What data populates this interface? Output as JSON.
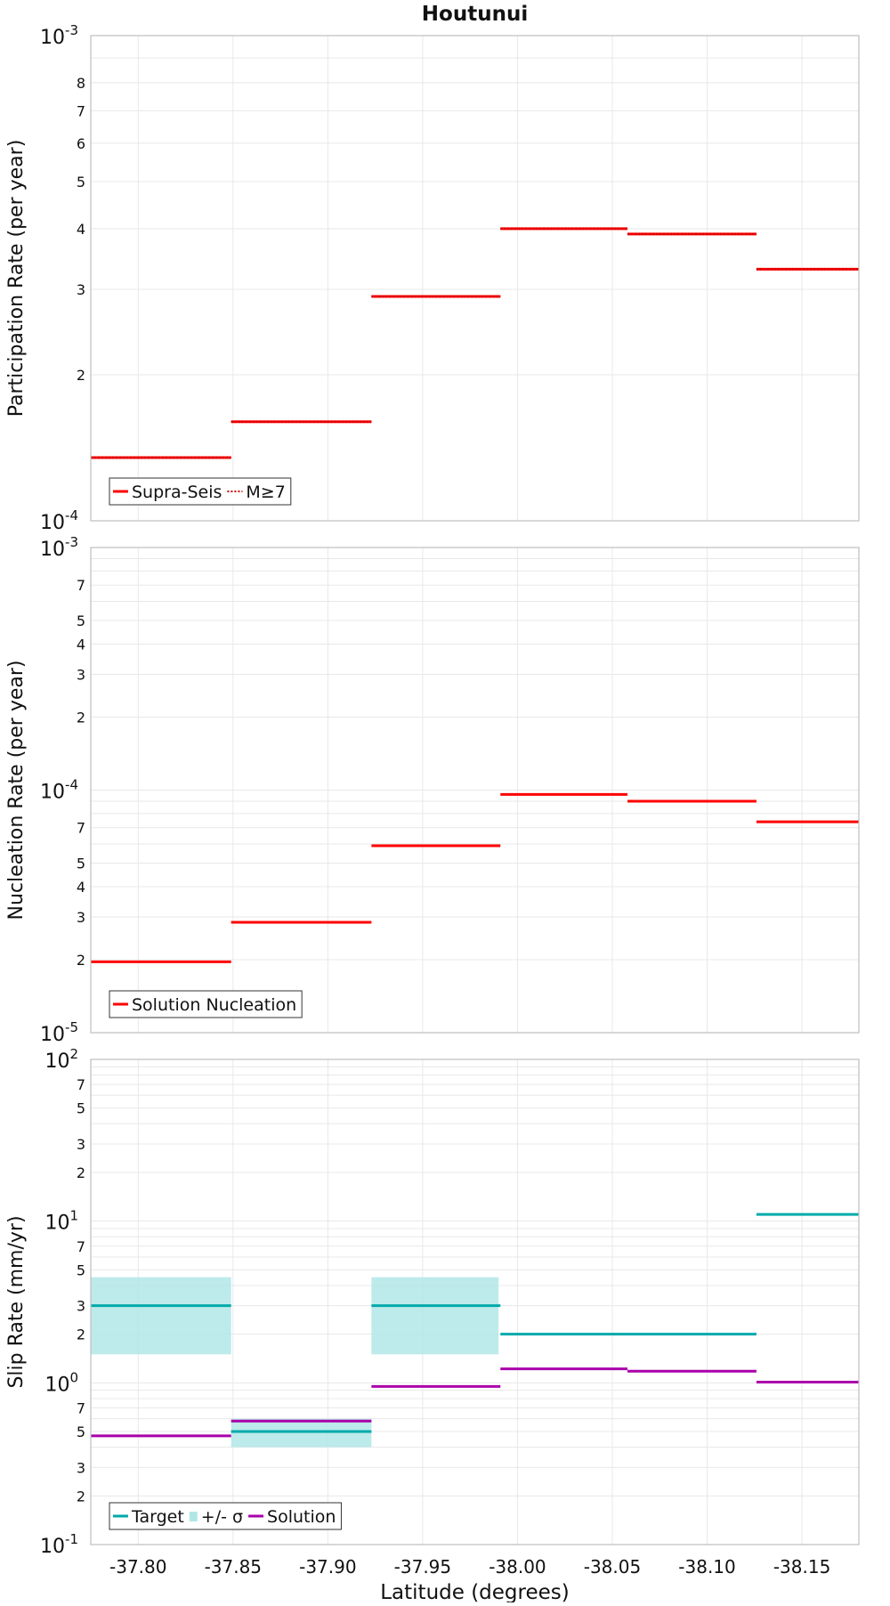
{
  "chart_data": [
    {
      "type": "line",
      "title": "Houtunui",
      "xlabel": "",
      "ylabel": "Participation Rate (per year)",
      "log_y": true,
      "xlim": [
        -37.775,
        -38.18
      ],
      "ylim": [
        0.0001,
        0.001
      ],
      "x_ticks": [
        "-37.80",
        "-37.85",
        "-37.90",
        "-37.95",
        "-38.00",
        "-38.05",
        "-38.10",
        "-38.15"
      ],
      "y_major_ticks": [
        {
          "base": "10",
          "exp": "-4"
        },
        {
          "base": "10",
          "exp": "-3"
        }
      ],
      "y_minor_labels": [
        "2",
        "3",
        "4",
        "5",
        "6",
        "7",
        "8"
      ],
      "legend": {
        "position": "bottom-left",
        "entries": [
          {
            "label": "Supra-Seis",
            "style": "solid",
            "color": "#ff0000"
          },
          {
            "label": "M≥7",
            "style": "dotted",
            "color": "#ff0000"
          }
        ]
      },
      "series": [
        {
          "name": "Supra-Seis",
          "color": "#ff0000",
          "style": "solid",
          "segments": [
            {
              "x0": -37.775,
              "x1": -37.849,
              "y": 0.000135
            },
            {
              "x0": -37.849,
              "x1": -37.923,
              "y": 0.00016
            },
            {
              "x0": -37.923,
              "x1": -37.991,
              "y": 0.00029
            },
            {
              "x0": -37.991,
              "x1": -38.058,
              "y": 0.0004
            },
            {
              "x0": -38.058,
              "x1": -38.126,
              "y": 0.00039
            },
            {
              "x0": -38.126,
              "x1": -38.18,
              "y": 0.00033
            }
          ]
        },
        {
          "name": "M≥7",
          "color": "#ff0000",
          "style": "dotted",
          "segments": [
            {
              "x0": -37.775,
              "x1": -37.849,
              "y": 0.000135
            },
            {
              "x0": -37.849,
              "x1": -37.923,
              "y": 0.00016
            },
            {
              "x0": -37.923,
              "x1": -37.991,
              "y": 0.00029
            },
            {
              "x0": -37.991,
              "x1": -38.058,
              "y": 0.0004
            },
            {
              "x0": -38.058,
              "x1": -38.126,
              "y": 0.00039
            },
            {
              "x0": -38.126,
              "x1": -38.18,
              "y": 0.00033
            }
          ]
        }
      ]
    },
    {
      "type": "line",
      "title": "",
      "xlabel": "",
      "ylabel": "Nucleation Rate (per year)",
      "log_y": true,
      "xlim": [
        -37.775,
        -38.18
      ],
      "ylim": [
        1e-05,
        0.001
      ],
      "x_ticks": [
        "-37.80",
        "-37.85",
        "-37.90",
        "-37.95",
        "-38.00",
        "-38.05",
        "-38.10",
        "-38.15"
      ],
      "y_major_ticks": [
        {
          "base": "10",
          "exp": "-5"
        },
        {
          "base": "10",
          "exp": "-4"
        },
        {
          "base": "10",
          "exp": "-3"
        }
      ],
      "y_minor_labels": [
        "2",
        "3",
        "4",
        "5",
        "7"
      ],
      "legend": {
        "position": "bottom-left",
        "entries": [
          {
            "label": "Solution Nucleation",
            "style": "solid",
            "color": "#ff0000"
          }
        ]
      },
      "series": [
        {
          "name": "Solution Nucleation",
          "color": "#ff0000",
          "style": "solid",
          "segments": [
            {
              "x0": -37.775,
              "x1": -37.849,
              "y": 1.96e-05
            },
            {
              "x0": -37.849,
              "x1": -37.923,
              "y": 2.85e-05
            },
            {
              "x0": -37.923,
              "x1": -37.991,
              "y": 5.9e-05
            },
            {
              "x0": -37.991,
              "x1": -38.058,
              "y": 9.6e-05
            },
            {
              "x0": -38.058,
              "x1": -38.126,
              "y": 9e-05
            },
            {
              "x0": -38.126,
              "x1": -38.18,
              "y": 7.4e-05
            }
          ]
        }
      ]
    },
    {
      "type": "line",
      "title": "",
      "xlabel": "Latitude (degrees)",
      "ylabel": "Slip Rate (mm/yr)",
      "log_y": true,
      "xlim": [
        -37.775,
        -38.18
      ],
      "ylim": [
        0.1,
        100
      ],
      "x_ticks": [
        "-37.80",
        "-37.85",
        "-37.90",
        "-37.95",
        "-38.00",
        "-38.05",
        "-38.10",
        "-38.15"
      ],
      "y_major_ticks": [
        {
          "base": "10",
          "exp": "-1"
        },
        {
          "base": "10",
          "exp": "0"
        },
        {
          "base": "10",
          "exp": "1"
        },
        {
          "base": "10",
          "exp": "2"
        }
      ],
      "y_minor_labels": [
        "2",
        "3",
        "5",
        "7"
      ],
      "legend": {
        "position": "bottom-left",
        "entries": [
          {
            "label": "Target",
            "style": "solid",
            "color": "#00aaaa"
          },
          {
            "label": "+/- σ",
            "style": "band",
            "color": "#b2e6e6"
          },
          {
            "label": "Solution",
            "style": "solid",
            "color": "#aa00aa"
          }
        ]
      },
      "bands": [
        {
          "name": "+/- σ",
          "color": "#b2e6e6",
          "segments": [
            {
              "x0": -37.775,
              "x1": -37.849,
              "y0": 1.5,
              "y1": 4.5
            },
            {
              "x0": -37.849,
              "x1": -37.923,
              "y0": 0.4,
              "y1": 0.6
            },
            {
              "x0": -37.923,
              "x1": -37.99,
              "y0": 1.5,
              "y1": 4.5
            }
          ]
        }
      ],
      "series": [
        {
          "name": "Target",
          "color": "#00aaaa",
          "style": "solid",
          "segments": [
            {
              "x0": -37.775,
              "x1": -37.849,
              "y": 3.0
            },
            {
              "x0": -37.849,
              "x1": -37.923,
              "y": 0.5
            },
            {
              "x0": -37.923,
              "x1": -37.991,
              "y": 3.0
            },
            {
              "x0": -37.991,
              "x1": -38.058,
              "y": 2.0
            },
            {
              "x0": -38.058,
              "x1": -38.126,
              "y": 2.0
            },
            {
              "x0": -38.126,
              "x1": -38.18,
              "y": 11.0
            }
          ]
        },
        {
          "name": "Solution",
          "color": "#aa00aa",
          "style": "solid",
          "segments": [
            {
              "x0": -37.775,
              "x1": -37.849,
              "y": 0.47
            },
            {
              "x0": -37.849,
              "x1": -37.923,
              "y": 0.58
            },
            {
              "x0": -37.923,
              "x1": -37.991,
              "y": 0.95
            },
            {
              "x0": -37.991,
              "x1": -38.058,
              "y": 1.22
            },
            {
              "x0": -38.058,
              "x1": -38.126,
              "y": 1.18
            },
            {
              "x0": -38.126,
              "x1": -38.18,
              "y": 1.01
            }
          ]
        }
      ]
    }
  ]
}
